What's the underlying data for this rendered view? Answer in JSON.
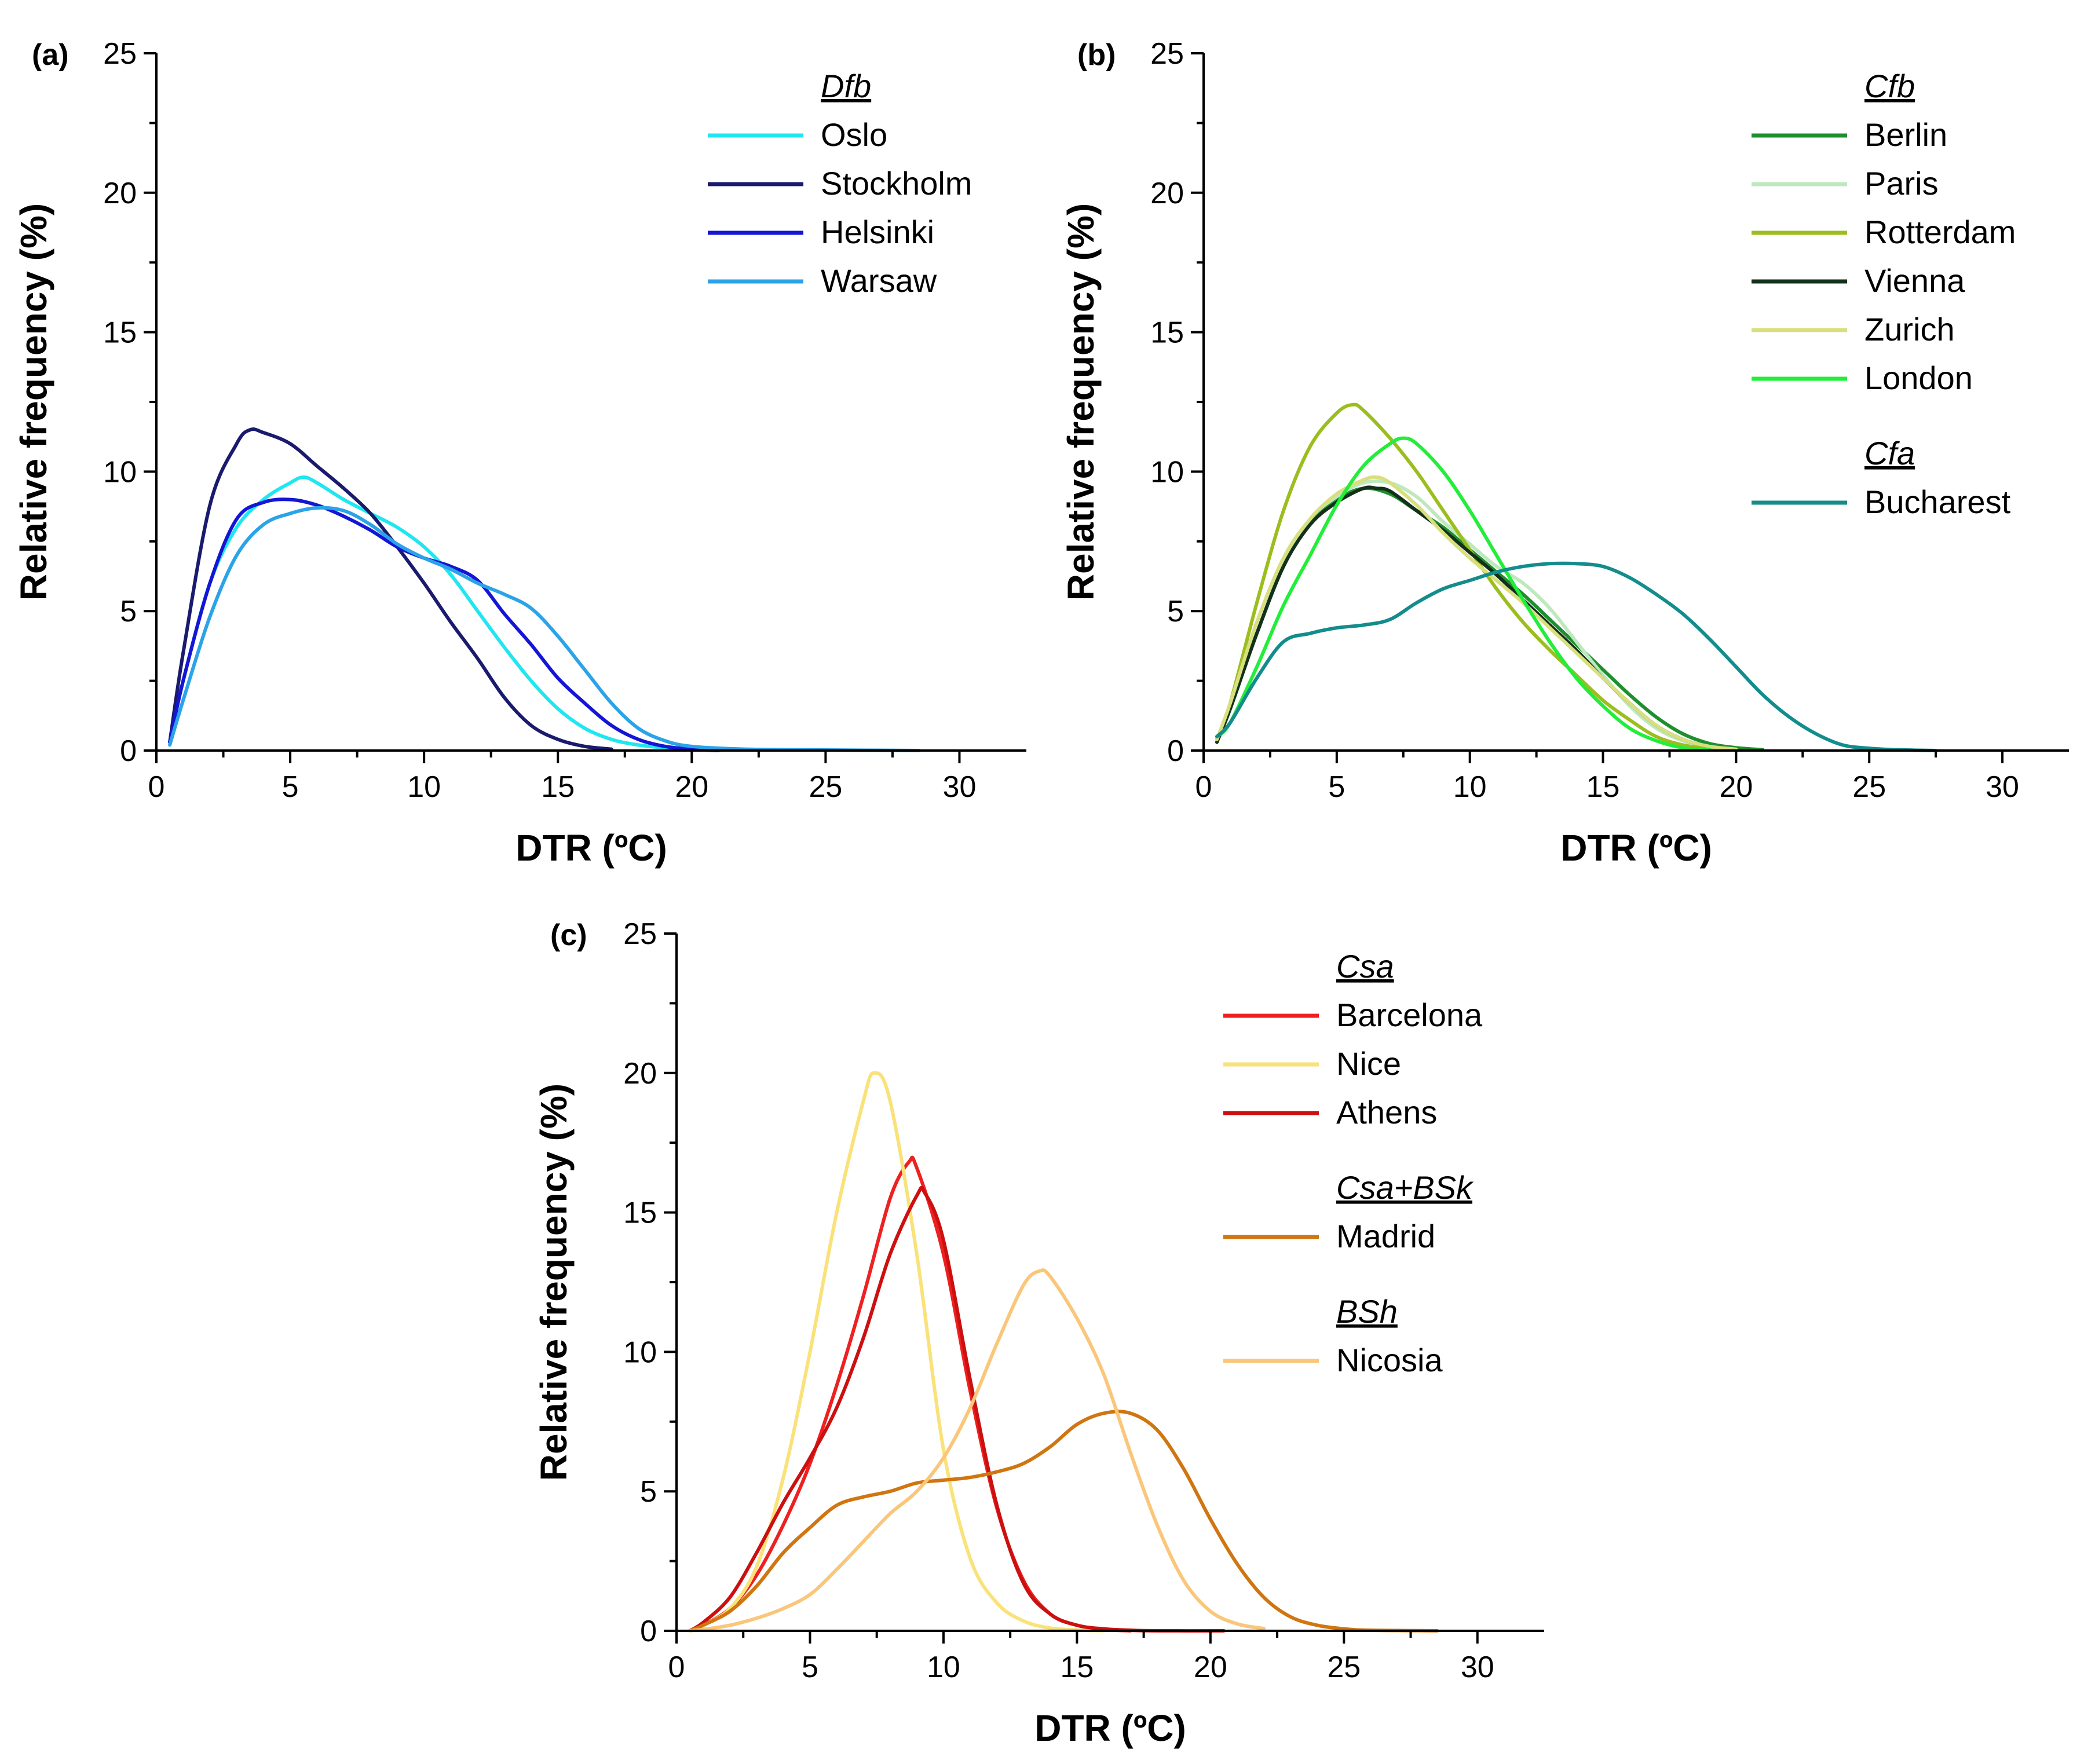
{
  "figure": {
    "panels": [
      {
        "id": "a",
        "label": "(a)"
      },
      {
        "id": "b",
        "label": "(b)"
      },
      {
        "id": "c",
        "label": "(c)"
      }
    ]
  },
  "chart_data": [
    {
      "panel": "(a)",
      "type": "line",
      "xlabel": "DTR (ºC)",
      "ylabel": "Relative frequency (%)",
      "xlim": [
        0,
        32.5
      ],
      "ylim": [
        0,
        25
      ],
      "xticks": [
        0,
        5,
        10,
        15,
        20,
        25,
        30
      ],
      "yticks": [
        0,
        5,
        10,
        15,
        20,
        25
      ],
      "legend_position": "top-right",
      "legend": [
        {
          "group": "Dfb",
          "entries": [
            "Oslo",
            "Stockholm",
            "Helsinki",
            "Warsaw"
          ]
        }
      ],
      "series": [
        {
          "name": "Oslo",
          "color": "#1FE6F0",
          "x": [
            0.5,
            1,
            2,
            3,
            4,
            5,
            5.5,
            6,
            7,
            8,
            9,
            10,
            11,
            12,
            13,
            14,
            15,
            16,
            17,
            18,
            19,
            20
          ],
          "y": [
            0.3,
            2.5,
            6.0,
            8.0,
            9.0,
            9.6,
            9.8,
            9.6,
            9.0,
            8.5,
            8.0,
            7.3,
            6.3,
            5.0,
            3.7,
            2.5,
            1.5,
            0.8,
            0.4,
            0.2,
            0.1,
            0.05
          ]
        },
        {
          "name": "Stockholm",
          "color": "#1A1A6E",
          "x": [
            0.5,
            1,
            2,
            3,
            3.5,
            4,
            5,
            6,
            7,
            8,
            9,
            10,
            11,
            12,
            13,
            14,
            15,
            16,
            17
          ],
          "y": [
            0.3,
            3.5,
            8.8,
            11.0,
            11.5,
            11.4,
            11.0,
            10.2,
            9.4,
            8.5,
            7.3,
            6.0,
            4.6,
            3.3,
            1.9,
            0.9,
            0.4,
            0.15,
            0.05
          ]
        },
        {
          "name": "Helsinki",
          "color": "#1515D5",
          "x": [
            0.5,
            1,
            2,
            3,
            4,
            5,
            6,
            7,
            8,
            9,
            10,
            11,
            12,
            13,
            14,
            15,
            16,
            17,
            18,
            19,
            20,
            21
          ],
          "y": [
            0.3,
            2.5,
            6.0,
            8.3,
            8.9,
            9.0,
            8.8,
            8.4,
            7.9,
            7.3,
            6.9,
            6.6,
            6.1,
            4.9,
            3.8,
            2.6,
            1.7,
            0.9,
            0.4,
            0.15,
            0.05,
            0.0
          ]
        },
        {
          "name": "Warsaw",
          "color": "#2AA3E8",
          "x": [
            0.5,
            1,
            2,
            3,
            4,
            5,
            6,
            7,
            8,
            9,
            10,
            11,
            12,
            13,
            14,
            15,
            16,
            17,
            18,
            19,
            20,
            22,
            25,
            28.5
          ],
          "y": [
            0.2,
            1.8,
            4.8,
            7.0,
            8.1,
            8.5,
            8.7,
            8.6,
            8.1,
            7.4,
            6.9,
            6.5,
            6.0,
            5.6,
            5.1,
            4.1,
            2.9,
            1.7,
            0.8,
            0.35,
            0.15,
            0.05,
            0.02,
            0.0
          ]
        }
      ]
    },
    {
      "panel": "(b)",
      "type": "line",
      "xlabel": "DTR (ºC)",
      "ylabel": "Relative frequency (%)",
      "xlim": [
        0,
        32.5
      ],
      "ylim": [
        0,
        25
      ],
      "xticks": [
        0,
        5,
        10,
        15,
        20,
        25,
        30
      ],
      "yticks": [
        0,
        5,
        10,
        15,
        20,
        25
      ],
      "legend_position": "top-right",
      "legend": [
        {
          "group": "Cfb",
          "entries": [
            "Berlin",
            "Paris",
            "Rotterdam",
            "Vienna",
            "Zurich",
            "London"
          ]
        },
        {
          "group": "Cfa",
          "entries": [
            "Bucharest"
          ]
        }
      ],
      "series": [
        {
          "name": "Berlin",
          "color": "#1E8F2E",
          "x": [
            0.5,
            1,
            2,
            3,
            4,
            5,
            6,
            7,
            8,
            9,
            10,
            11,
            12,
            13,
            14,
            15,
            16,
            17,
            18,
            19,
            20,
            21
          ],
          "y": [
            0.4,
            1.5,
            4.2,
            6.6,
            8.2,
            9.0,
            9.4,
            9.2,
            8.6,
            8.0,
            7.2,
            6.4,
            5.6,
            4.7,
            3.8,
            2.9,
            2.0,
            1.2,
            0.6,
            0.25,
            0.1,
            0.03
          ]
        },
        {
          "name": "Paris",
          "color": "#BEE8BE",
          "x": [
            0.5,
            1,
            2,
            3,
            4,
            5,
            6,
            7,
            8,
            9,
            10,
            11,
            12,
            13,
            14,
            15,
            16,
            17,
            18,
            19,
            20
          ],
          "y": [
            0.3,
            1.5,
            4.2,
            6.7,
            8.3,
            9.1,
            9.6,
            9.6,
            9.1,
            8.2,
            7.4,
            6.6,
            6.0,
            5.1,
            3.9,
            2.7,
            1.6,
            0.8,
            0.35,
            0.1,
            0.03
          ]
        },
        {
          "name": "Rotterdam",
          "color": "#9BBE1E",
          "x": [
            0.5,
            1,
            2,
            3,
            4,
            5,
            5.6,
            6,
            7,
            8,
            9,
            10,
            11,
            12,
            13,
            14,
            15,
            16,
            17,
            18,
            19
          ],
          "y": [
            0.3,
            1.7,
            5.3,
            8.6,
            10.9,
            12.1,
            12.4,
            12.2,
            11.2,
            10.0,
            8.6,
            7.2,
            5.8,
            4.6,
            3.6,
            2.7,
            1.8,
            1.1,
            0.5,
            0.2,
            0.05
          ]
        },
        {
          "name": "Vienna",
          "color": "#12301A",
          "x": [
            0.5,
            1,
            2,
            3,
            4,
            5,
            6,
            6.5,
            7,
            8,
            9,
            10,
            11,
            12,
            13,
            14,
            15,
            16,
            17,
            18,
            19,
            20
          ],
          "y": [
            0.3,
            1.5,
            4.2,
            6.6,
            8.1,
            8.9,
            9.4,
            9.4,
            9.3,
            8.6,
            7.9,
            7.1,
            6.3,
            5.4,
            4.5,
            3.6,
            2.6,
            1.7,
            0.9,
            0.4,
            0.15,
            0.05
          ]
        },
        {
          "name": "Zurich",
          "color": "#D8DF7E",
          "x": [
            0.5,
            1,
            2,
            3,
            4,
            5,
            6,
            6.5,
            7,
            8,
            9,
            10,
            11,
            12,
            13,
            14,
            15,
            16,
            17,
            18,
            19,
            20
          ],
          "y": [
            0.4,
            1.7,
            4.6,
            6.9,
            8.3,
            9.2,
            9.7,
            9.8,
            9.6,
            8.8,
            7.8,
            6.9,
            6.1,
            5.3,
            4.4,
            3.5,
            2.6,
            1.7,
            0.9,
            0.4,
            0.15,
            0.05
          ]
        },
        {
          "name": "London",
          "color": "#22EE3A",
          "x": [
            0.5,
            1,
            2,
            3,
            4,
            5,
            6,
            7,
            7.5,
            8,
            9,
            10,
            11,
            12,
            13,
            14,
            15,
            16,
            17,
            18,
            19
          ],
          "y": [
            0.5,
            1.0,
            3.0,
            5.2,
            7.0,
            8.8,
            10.2,
            11.0,
            11.2,
            11.0,
            10.0,
            8.6,
            7.0,
            5.4,
            3.9,
            2.6,
            1.6,
            0.8,
            0.35,
            0.1,
            0.03
          ]
        },
        {
          "name": "Bucharest",
          "color": "#138C8C",
          "x": [
            0.5,
            1,
            2,
            3,
            4,
            5,
            6,
            7,
            8,
            9,
            10,
            11,
            12,
            13,
            14,
            15,
            16,
            17,
            18,
            19,
            20,
            21,
            22,
            23,
            24,
            25,
            26,
            27.5
          ],
          "y": [
            0.5,
            1.0,
            2.6,
            3.9,
            4.2,
            4.4,
            4.5,
            4.7,
            5.3,
            5.8,
            6.1,
            6.4,
            6.6,
            6.7,
            6.7,
            6.6,
            6.2,
            5.6,
            4.9,
            4.0,
            3.0,
            2.0,
            1.2,
            0.6,
            0.2,
            0.08,
            0.03,
            0.0
          ]
        }
      ]
    },
    {
      "panel": "(c)",
      "type": "line",
      "xlabel": "DTR (ºC)",
      "ylabel": "Relative frequency (%)",
      "xlim": [
        0,
        32.5
      ],
      "ylim": [
        0,
        25
      ],
      "xticks": [
        0,
        5,
        10,
        15,
        20,
        25,
        30
      ],
      "yticks": [
        0,
        5,
        10,
        15,
        20,
        25
      ],
      "legend_position": "right",
      "legend": [
        {
          "group": "Csa",
          "entries": [
            "Barcelona",
            "Nice",
            "Athens"
          ]
        },
        {
          "group": "Csa+BSk",
          "entries": [
            "Madrid"
          ]
        },
        {
          "group": "BSh",
          "entries": [
            "Nicosia"
          ]
        }
      ],
      "series": [
        {
          "name": "Barcelona",
          "color": "#EE2020",
          "x": [
            0.5,
            1,
            2,
            3,
            4,
            5,
            6,
            7,
            8,
            8.7,
            9,
            10,
            11,
            12,
            13,
            14,
            15,
            16,
            17
          ],
          "y": [
            0.0,
            0.2,
            0.8,
            2.0,
            3.8,
            6.0,
            8.8,
            12.0,
            15.5,
            16.8,
            16.6,
            13.5,
            8.6,
            4.4,
            1.8,
            0.6,
            0.2,
            0.05,
            0.0
          ]
        },
        {
          "name": "Nice",
          "color": "#FAE27A",
          "x": [
            0.5,
            1,
            2,
            3,
            4,
            5,
            6,
            7,
            7.4,
            8,
            9,
            10,
            11,
            12,
            13,
            14,
            15,
            16
          ],
          "y": [
            0.0,
            0.2,
            0.8,
            2.3,
            5.5,
            10.0,
            15.0,
            19.0,
            20.0,
            19.0,
            13.5,
            6.5,
            2.6,
            1.0,
            0.35,
            0.1,
            0.03,
            0.0
          ]
        },
        {
          "name": "Athens",
          "color": "#CC1010",
          "x": [
            0.5,
            1,
            2,
            3,
            4,
            5,
            6,
            7,
            8,
            9,
            9.3,
            10,
            11,
            12,
            13,
            14,
            15,
            16,
            17,
            18,
            20.5
          ],
          "y": [
            0.0,
            0.3,
            1.2,
            2.8,
            4.6,
            6.2,
            8.0,
            10.5,
            13.5,
            15.6,
            15.7,
            14.0,
            9.0,
            4.5,
            1.7,
            0.6,
            0.2,
            0.07,
            0.02,
            0.0,
            0.0
          ]
        },
        {
          "name": "Madrid",
          "color": "#D07510",
          "x": [
            0.5,
            1,
            2,
            3,
            4,
            5,
            6,
            7,
            8,
            9,
            10,
            11,
            12,
            13,
            14,
            15,
            16,
            17,
            18,
            19,
            20,
            21,
            22,
            23,
            24,
            25,
            26,
            28.5
          ],
          "y": [
            0.0,
            0.2,
            0.7,
            1.6,
            2.8,
            3.7,
            4.5,
            4.8,
            5.0,
            5.3,
            5.4,
            5.5,
            5.7,
            6.0,
            6.6,
            7.4,
            7.8,
            7.8,
            7.2,
            5.8,
            4.0,
            2.4,
            1.2,
            0.5,
            0.2,
            0.07,
            0.02,
            0.0
          ]
        },
        {
          "name": "Nicosia",
          "color": "#FAC67A",
          "x": [
            0.5,
            1,
            2,
            3,
            4,
            5,
            6,
            7,
            8,
            9,
            10,
            11,
            12,
            13,
            13.6,
            14,
            15,
            16,
            17,
            18,
            19,
            20,
            21,
            22
          ],
          "y": [
            0.0,
            0.05,
            0.2,
            0.45,
            0.8,
            1.3,
            2.2,
            3.2,
            4.2,
            5.0,
            6.2,
            8.0,
            10.3,
            12.4,
            12.9,
            12.7,
            11.2,
            9.2,
            6.4,
            3.8,
            1.8,
            0.7,
            0.25,
            0.08
          ]
        }
      ]
    }
  ]
}
